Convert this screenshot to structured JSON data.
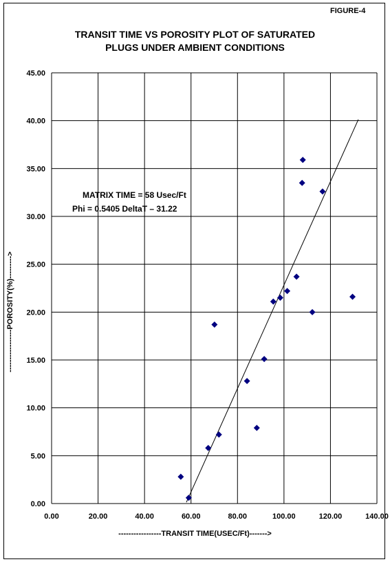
{
  "figure_label": "FIGURE-4",
  "colors": {
    "marker": "#000080",
    "grid": "#000000",
    "trendline": "#000000"
  },
  "chart_data": {
    "type": "scatter",
    "title": "TRANSIT TIME VS POROSITY PLOT OF SATURATED PLUGS UNDER AMBIENT CONDITIONS",
    "title_lines": [
      "TRANSIT TIME VS POROSITY PLOT OF SATURATED",
      "PLUGS UNDER AMBIENT CONDITIONS"
    ],
    "xlabel": "-----------------TRANSIT TIME(USEC/Ft)------->",
    "ylabel": "-----------------POROSITY(%)--------->",
    "xlim": [
      0,
      140
    ],
    "ylim": [
      0,
      45
    ],
    "x_ticks": [
      "0.00",
      "20.00",
      "40.00",
      "60.00",
      "80.00",
      "100.00",
      "120.00",
      "140.00"
    ],
    "y_ticks": [
      "0.00",
      "5.00",
      "10.00",
      "15.00",
      "20.00",
      "25.00",
      "30.00",
      "35.00",
      "40.00",
      "45.00"
    ],
    "grid": true,
    "marker": "diamond",
    "points": [
      {
        "x": 55.6,
        "y": 2.8
      },
      {
        "x": 59.0,
        "y": 0.6
      },
      {
        "x": 67.4,
        "y": 5.8
      },
      {
        "x": 70.1,
        "y": 18.7
      },
      {
        "x": 72.0,
        "y": 7.2
      },
      {
        "x": 84.1,
        "y": 12.8
      },
      {
        "x": 88.3,
        "y": 7.9
      },
      {
        "x": 91.5,
        "y": 15.1
      },
      {
        "x": 95.4,
        "y": 21.1
      },
      {
        "x": 98.4,
        "y": 21.5
      },
      {
        "x": 101.4,
        "y": 22.2
      },
      {
        "x": 105.4,
        "y": 23.7
      },
      {
        "x": 107.8,
        "y": 33.5
      },
      {
        "x": 108.1,
        "y": 35.9
      },
      {
        "x": 112.2,
        "y": 20.0
      },
      {
        "x": 116.6,
        "y": 32.6
      },
      {
        "x": 129.5,
        "y": 21.6
      }
    ],
    "trendline": {
      "slope": 0.5405,
      "intercept": -31.22,
      "x_start": 58,
      "x_end": 132
    },
    "annotations": [
      "MATRIX TIME = 58 Usec/Ft",
      "Phi = 0.5405 DeltaT – 31.22"
    ]
  }
}
